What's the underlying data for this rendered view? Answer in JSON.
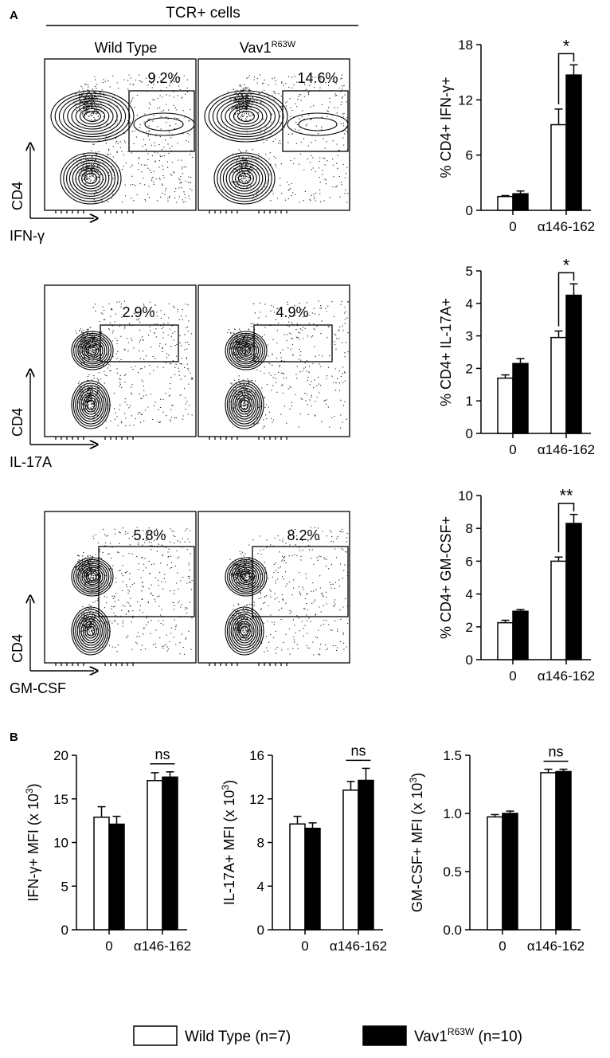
{
  "panel_labels": {
    "a": "A",
    "b": "B"
  },
  "flow": {
    "header": "TCR+ cells",
    "column_titles": [
      "Wild Type",
      "Vav1"
    ],
    "column_title_superscript": "R63W",
    "y_axis_label": "CD4",
    "rows": [
      {
        "x_axis_label": "IFN-γ",
        "wt_percent": "9.2%",
        "mut_percent": "14.6%"
      },
      {
        "x_axis_label": "IL-17A",
        "wt_percent": "2.9%",
        "mut_percent": "4.9%"
      },
      {
        "x_axis_label": "GM-CSF",
        "wt_percent": "5.8%",
        "mut_percent": "8.2%"
      }
    ]
  },
  "legend": {
    "wild_type": "Wild Type (n=7)",
    "mutant_prefix": "Vav1",
    "mutant_superscript": "R63W",
    "mutant_suffix": " (n=10)",
    "wild_type_color": "#ffffff",
    "mutant_color": "#000000"
  },
  "chart_data": [
    {
      "type": "bar",
      "ylabel": "% CD4+ IFN-γ+",
      "categories": [
        "0",
        "α146-162"
      ],
      "ylim": [
        0,
        18
      ],
      "yticks": [
        "0",
        "6",
        "12",
        "18"
      ],
      "series": [
        {
          "name": "Wild Type (n=7)",
          "values": [
            1.5,
            9.3
          ],
          "errors": [
            0.1,
            1.7
          ]
        },
        {
          "name": "Vav1R63W (n=10)",
          "values": [
            1.8,
            14.7
          ],
          "errors": [
            0.3,
            1.1
          ]
        }
      ],
      "annotation": "*"
    },
    {
      "type": "bar",
      "ylabel": "% CD4+ IL-17A+",
      "categories": [
        "0",
        "α146-162"
      ],
      "ylim": [
        0,
        5
      ],
      "yticks": [
        "0",
        "1",
        "2",
        "3",
        "4",
        "5"
      ],
      "series": [
        {
          "name": "Wild Type (n=7)",
          "values": [
            1.7,
            2.95
          ],
          "errors": [
            0.1,
            0.2
          ]
        },
        {
          "name": "Vav1R63W (n=10)",
          "values": [
            2.15,
            4.25
          ],
          "errors": [
            0.15,
            0.35
          ]
        }
      ],
      "annotation": "*"
    },
    {
      "type": "bar",
      "ylabel": "% CD4+ GM-CSF+",
      "categories": [
        "0",
        "α146-162"
      ],
      "ylim": [
        0,
        10
      ],
      "yticks": [
        "0",
        "2",
        "4",
        "6",
        "8",
        "10"
      ],
      "series": [
        {
          "name": "Wild Type (n=7)",
          "values": [
            2.25,
            6.0
          ],
          "errors": [
            0.15,
            0.25
          ]
        },
        {
          "name": "Vav1R63W (n=10)",
          "values": [
            2.95,
            8.3
          ],
          "errors": [
            0.1,
            0.55
          ]
        }
      ],
      "annotation": "**"
    },
    {
      "type": "bar",
      "ylabel": "IFN-γ+ MFI (x 10",
      "ylabel_superscript": "3",
      "ylabel_suffix": ")",
      "categories": [
        "0",
        "α146-162"
      ],
      "ylim": [
        0,
        20
      ],
      "yticks": [
        "0",
        "5",
        "10",
        "15",
        "20"
      ],
      "series": [
        {
          "name": "Wild Type (n=7)",
          "values": [
            12.9,
            17.1
          ],
          "errors": [
            1.2,
            0.9
          ]
        },
        {
          "name": "Vav1R63W (n=10)",
          "values": [
            12.1,
            17.5
          ],
          "errors": [
            0.9,
            0.6
          ]
        }
      ],
      "annotation": "ns"
    },
    {
      "type": "bar",
      "ylabel": "IL-17A+ MFI (x 10",
      "ylabel_superscript": "3",
      "ylabel_suffix": ")",
      "categories": [
        "0",
        "α146-162"
      ],
      "ylim": [
        0,
        16
      ],
      "yticks": [
        "0",
        "4",
        "8",
        "12",
        "16"
      ],
      "series": [
        {
          "name": "Wild Type (n=7)",
          "values": [
            9.7,
            12.8
          ],
          "errors": [
            0.7,
            0.8
          ]
        },
        {
          "name": "Vav1R63W (n=10)",
          "values": [
            9.3,
            13.7
          ],
          "errors": [
            0.5,
            1.1
          ]
        }
      ],
      "annotation": "ns"
    },
    {
      "type": "bar",
      "ylabel": "GM-CSF+ MFI (x 10",
      "ylabel_superscript": "3",
      "ylabel_suffix": ")",
      "categories": [
        "0",
        "α146-162"
      ],
      "ylim": [
        0,
        1.5
      ],
      "yticks": [
        "0.0",
        "0.5",
        "1.0",
        "1.5"
      ],
      "series": [
        {
          "name": "Wild Type (n=7)",
          "values": [
            0.97,
            1.35
          ],
          "errors": [
            0.02,
            0.03
          ]
        },
        {
          "name": "Vav1R63W (n=10)",
          "values": [
            1.0,
            1.36
          ],
          "errors": [
            0.02,
            0.02
          ]
        }
      ],
      "annotation": "ns"
    }
  ]
}
